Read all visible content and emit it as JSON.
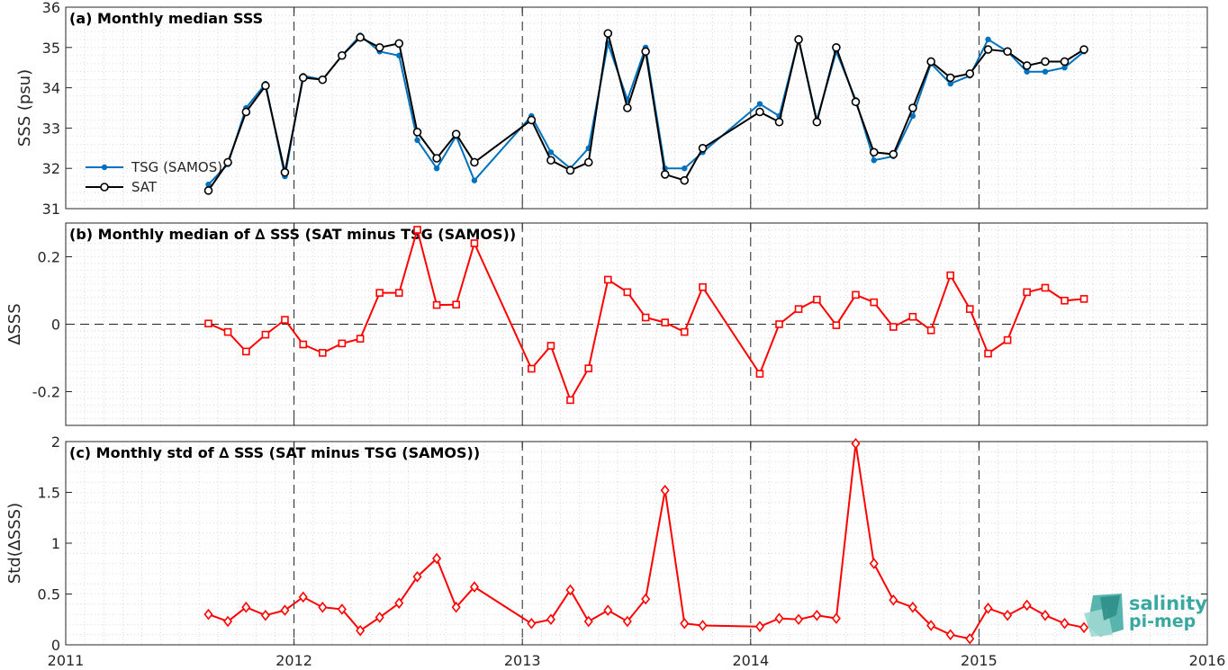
{
  "logo": {
    "line1": "salinity",
    "line2": "pi-mep"
  },
  "colors": {
    "tsg": "#0072bd",
    "sat": "#000000",
    "delta": "#ff0000",
    "logo": "#3aa8a0"
  },
  "chart_data": [
    {
      "type": "line",
      "title": "(a) Monthly median SSS",
      "ylabel": "SSS (psu)",
      "xlim": [
        2011,
        2016
      ],
      "ylim": [
        31,
        36
      ],
      "yticks": [
        31,
        32,
        33,
        34,
        35,
        36
      ],
      "xticks": [
        2011,
        2012,
        2013,
        2014,
        2015,
        2016
      ],
      "grid": true,
      "legend": "left",
      "series": [
        {
          "name": "TSG (SAMOS)",
          "marker": "dot",
          "x": [
            2011.625,
            2011.71,
            2011.79,
            2011.875,
            2011.96,
            2012.04,
            2012.125,
            2012.21,
            2012.29,
            2012.375,
            2012.46,
            2012.54,
            2012.625,
            2012.71,
            2012.79,
            2013.04,
            2013.125,
            2013.21,
            2013.29,
            2013.375,
            2013.46,
            2013.54,
            2013.625,
            2013.71,
            2013.79,
            2014.04,
            2014.125,
            2014.21,
            2014.29,
            2014.375,
            2014.46,
            2014.54,
            2014.625,
            2014.71,
            2014.79,
            2014.875,
            2014.96,
            2015.04,
            2015.125,
            2015.21,
            2015.29,
            2015.375,
            2015.46
          ],
          "values": [
            31.6,
            32.1,
            33.5,
            34.1,
            31.8,
            34.3,
            34.2,
            34.8,
            35.3,
            34.9,
            34.8,
            32.7,
            32.0,
            32.8,
            31.7,
            33.3,
            32.4,
            32.0,
            32.5,
            35.1,
            33.7,
            35.0,
            32.0,
            32.0,
            32.4,
            33.6,
            33.3,
            35.2,
            33.2,
            34.9,
            33.7,
            32.2,
            32.3,
            33.3,
            34.6,
            34.1,
            34.3,
            35.2,
            34.9,
            34.4,
            34.4,
            34.5,
            34.9
          ]
        },
        {
          "name": "SAT",
          "marker": "circle",
          "x": [
            2011.625,
            2011.71,
            2011.79,
            2011.875,
            2011.96,
            2012.04,
            2012.125,
            2012.21,
            2012.29,
            2012.375,
            2012.46,
            2012.54,
            2012.625,
            2012.71,
            2012.79,
            2013.04,
            2013.125,
            2013.21,
            2013.29,
            2013.375,
            2013.46,
            2013.54,
            2013.625,
            2013.71,
            2013.79,
            2014.04,
            2014.125,
            2014.21,
            2014.29,
            2014.375,
            2014.46,
            2014.54,
            2014.625,
            2014.71,
            2014.79,
            2014.875,
            2014.96,
            2015.04,
            2015.125,
            2015.21,
            2015.29,
            2015.375,
            2015.46
          ],
          "values": [
            31.45,
            32.15,
            33.4,
            34.05,
            31.9,
            34.25,
            34.2,
            34.8,
            35.25,
            35.0,
            35.1,
            32.9,
            32.25,
            32.85,
            32.15,
            33.2,
            32.2,
            31.95,
            32.15,
            35.35,
            33.5,
            34.9,
            31.85,
            31.7,
            32.5,
            33.4,
            33.15,
            35.2,
            33.15,
            35.0,
            33.65,
            32.4,
            32.35,
            33.5,
            34.65,
            34.25,
            34.35,
            34.95,
            34.9,
            34.55,
            34.65,
            34.65,
            34.95
          ]
        }
      ]
    },
    {
      "type": "line",
      "title": "(b) Monthly median of ∆ SSS (SAT minus TSG (SAMOS))",
      "ylabel": "∆SSS",
      "xlim": [
        2011,
        2016
      ],
      "ylim": [
        -0.3,
        0.3
      ],
      "yticks": [
        -0.2,
        0,
        0.2
      ],
      "ytick_labels": [
        "-0.2",
        "0",
        "0.2"
      ],
      "grid": true,
      "reference_line": 0,
      "series": [
        {
          "marker": "square",
          "x": [
            2011.625,
            2011.71,
            2011.79,
            2011.875,
            2011.96,
            2012.04,
            2012.125,
            2012.21,
            2012.29,
            2012.375,
            2012.46,
            2012.54,
            2012.625,
            2012.71,
            2012.79,
            2013.04,
            2013.125,
            2013.21,
            2013.29,
            2013.375,
            2013.46,
            2013.54,
            2013.625,
            2013.71,
            2013.79,
            2014.04,
            2014.125,
            2014.21,
            2014.29,
            2014.375,
            2014.46,
            2014.54,
            2014.625,
            2014.71,
            2014.79,
            2014.875,
            2014.96,
            2015.04,
            2015.125,
            2015.21,
            2015.29,
            2015.375,
            2015.46
          ],
          "values": [
            0.002,
            -0.023,
            -0.081,
            -0.031,
            0.013,
            -0.06,
            -0.085,
            -0.057,
            -0.043,
            0.093,
            0.093,
            0.28,
            0.057,
            0.058,
            0.24,
            -0.132,
            -0.064,
            -0.225,
            -0.131,
            0.132,
            0.095,
            0.02,
            0.005,
            -0.023,
            0.11,
            -0.147,
            0.0,
            0.045,
            0.073,
            -0.003,
            0.087,
            0.065,
            -0.008,
            0.022,
            -0.018,
            0.145,
            0.045,
            -0.087,
            -0.047,
            0.095,
            0.108,
            0.07,
            0.075
          ]
        }
      ]
    },
    {
      "type": "line",
      "title": "(c) Monthly std of ∆ SSS (SAT minus TSG (SAMOS))",
      "ylabel": "Std(∆SSS)",
      "xlabel": "",
      "xlim": [
        2011,
        2016
      ],
      "ylim": [
        0,
        2
      ],
      "yticks": [
        0,
        0.5,
        1,
        1.5,
        2
      ],
      "ytick_labels": [
        "0",
        "0.5",
        "1",
        "1.5",
        "2"
      ],
      "xticks": [
        2011,
        2012,
        2013,
        2014,
        2015,
        2016
      ],
      "grid": true,
      "series": [
        {
          "marker": "diamond",
          "x": [
            2011.625,
            2011.71,
            2011.79,
            2011.875,
            2011.96,
            2012.04,
            2012.125,
            2012.21,
            2012.29,
            2012.375,
            2012.46,
            2012.54,
            2012.625,
            2012.71,
            2012.79,
            2013.04,
            2013.125,
            2013.21,
            2013.29,
            2013.375,
            2013.46,
            2013.54,
            2013.625,
            2013.71,
            2013.79,
            2014.04,
            2014.125,
            2014.21,
            2014.29,
            2014.375,
            2014.46,
            2014.54,
            2014.625,
            2014.71,
            2014.79,
            2014.875,
            2014.96,
            2015.04,
            2015.125,
            2015.21,
            2015.29,
            2015.375,
            2015.46
          ],
          "values": [
            0.3,
            0.23,
            0.37,
            0.29,
            0.34,
            0.47,
            0.37,
            0.35,
            0.14,
            0.27,
            0.41,
            0.67,
            0.85,
            0.37,
            0.57,
            0.21,
            0.25,
            0.54,
            0.23,
            0.34,
            0.23,
            0.45,
            1.52,
            0.21,
            0.19,
            0.18,
            0.26,
            0.25,
            0.29,
            0.26,
            1.98,
            0.8,
            0.44,
            0.37,
            0.19,
            0.1,
            0.06,
            0.36,
            0.29,
            0.39,
            0.29,
            0.21,
            0.17
          ]
        }
      ]
    }
  ]
}
